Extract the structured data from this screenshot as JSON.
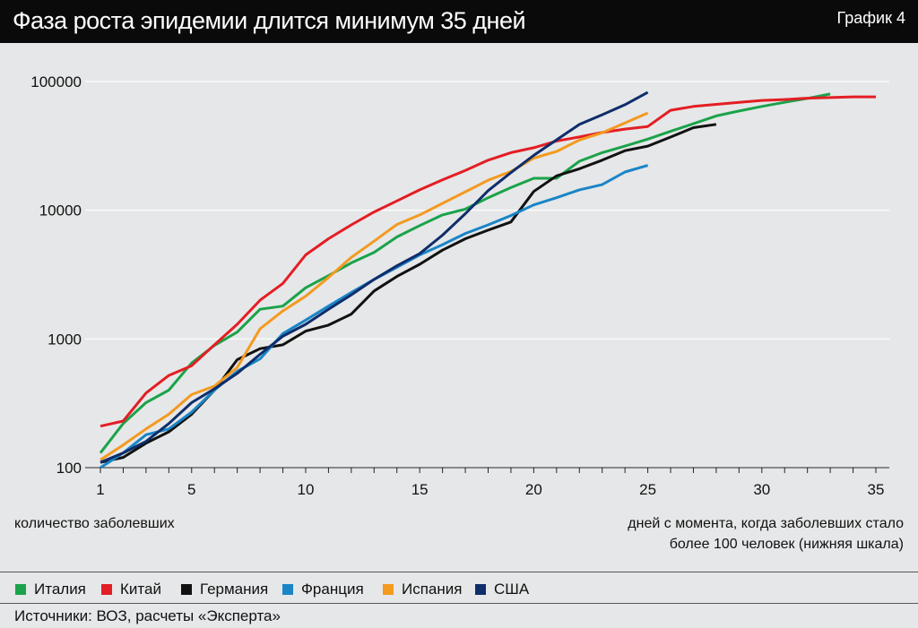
{
  "header": {
    "title": "Фаза роста эпидемии длится минимум 35 дней",
    "badge": "График 4"
  },
  "captions": {
    "ylabel": "количество заболевших",
    "xlabel_line1": "дней с момента, когда заболевших стало",
    "xlabel_line2": "более 100 человек (нижняя шкала)"
  },
  "source": "Источники: ВОЗ, расчеты «Эксперта»",
  "chart_data": {
    "type": "line",
    "title": "Фаза роста эпидемии длится минимум 35 дней",
    "xlabel": "дней с момента, когда заболевших стало более 100 человек (нижняя шкала)",
    "ylabel": "количество заболевших",
    "yscale": "log",
    "xlim": [
      1,
      35
    ],
    "ylim": [
      100,
      100000
    ],
    "xticks": [
      "1",
      "5",
      "10",
      "15",
      "20",
      "25",
      "30",
      "35"
    ],
    "yticks": [
      "100",
      "1000",
      "10000",
      "100000"
    ],
    "grid": "horizontal",
    "legend": "bottom",
    "series": [
      {
        "name": "Италия",
        "color": "#1aa34a",
        "x": [
          1,
          2,
          3,
          4,
          5,
          6,
          7,
          8,
          9,
          10,
          11,
          12,
          13,
          14,
          15,
          16,
          17,
          18,
          19,
          20,
          21,
          22,
          23,
          24,
          25,
          26,
          27,
          28,
          29,
          30,
          31,
          32,
          33
        ],
        "values": [
          130,
          220,
          320,
          400,
          650,
          890,
          1130,
          1700,
          1800,
          2500,
          3100,
          3900,
          4700,
          6200,
          7600,
          9200,
          10200,
          12500,
          15000,
          17700,
          17700,
          24000,
          28000,
          31500,
          35700,
          41000,
          47000,
          54000,
          59000,
          64000,
          69000,
          74000,
          80000
        ]
      },
      {
        "name": "Китай",
        "color": "#e31e24",
        "x": [
          1,
          2,
          3,
          4,
          5,
          6,
          7,
          8,
          9,
          10,
          11,
          12,
          13,
          14,
          15,
          16,
          17,
          18,
          19,
          20,
          21,
          22,
          23,
          24,
          25,
          26,
          27,
          28,
          29,
          30,
          31,
          32,
          33,
          34,
          35
        ],
        "values": [
          210,
          230,
          380,
          520,
          620,
          900,
          1300,
          2000,
          2700,
          4500,
          6000,
          7700,
          9700,
          11800,
          14400,
          17200,
          20400,
          24500,
          28000,
          30600,
          34500,
          37100,
          40200,
          42700,
          44700,
          59800,
          64000,
          66500,
          69000,
          71300,
          72500,
          74200,
          75000,
          76000,
          76000
        ]
      },
      {
        "name": "Германия",
        "color": "#111111",
        "x": [
          1,
          2,
          3,
          4,
          5,
          6,
          7,
          8,
          9,
          10,
          11,
          12,
          13,
          14,
          15,
          16,
          17,
          18,
          19,
          20,
          21,
          22,
          23,
          24,
          25,
          26,
          27,
          28
        ],
        "values": [
          110,
          120,
          155,
          190,
          260,
          400,
          690,
          840,
          900,
          1150,
          1280,
          1560,
          2360,
          3060,
          3800,
          4900,
          6000,
          7000,
          8100,
          14000,
          18500,
          21000,
          24500,
          29000,
          31500,
          37000,
          43800,
          46500
        ]
      },
      {
        "name": "Франция",
        "color": "#1a85c7",
        "x": [
          1,
          2,
          3,
          4,
          5,
          6,
          7,
          8,
          9,
          10,
          11,
          12,
          13,
          14,
          15,
          16,
          17,
          18,
          19,
          20,
          21,
          22,
          23,
          24,
          25
        ],
        "values": [
          100,
          130,
          180,
          200,
          270,
          400,
          560,
          700,
          1100,
          1400,
          1800,
          2300,
          2900,
          3600,
          4500,
          5400,
          6600,
          7700,
          9100,
          11000,
          12500,
          14400,
          15800,
          19800,
          22300
        ]
      },
      {
        "name": "Испания",
        "color": "#f39a1f",
        "x": [
          1,
          2,
          3,
          4,
          5,
          6,
          7,
          8,
          9,
          10,
          11,
          12,
          13,
          14,
          15,
          16,
          17,
          18,
          19,
          20,
          21,
          22,
          23,
          24,
          25
        ],
        "values": [
          115,
          150,
          200,
          260,
          370,
          430,
          600,
          1200,
          1650,
          2150,
          3000,
          4300,
          5750,
          7750,
          9200,
          11300,
          13900,
          17100,
          20000,
          25400,
          28600,
          35100,
          40000,
          47600,
          57000
        ]
      },
      {
        "name": "США",
        "color": "#0e2d6b",
        "x": [
          1,
          2,
          3,
          4,
          5,
          6,
          7,
          8,
          9,
          10,
          11,
          12,
          13,
          14,
          15,
          16,
          17,
          18,
          19,
          20,
          21,
          22,
          23,
          24,
          25
        ],
        "values": [
          110,
          130,
          160,
          220,
          320,
          410,
          540,
          760,
          1050,
          1300,
          1700,
          2200,
          2900,
          3700,
          4600,
          6400,
          9400,
          14200,
          19600,
          26700,
          35200,
          46400,
          55200,
          66000,
          82400
        ]
      }
    ]
  }
}
